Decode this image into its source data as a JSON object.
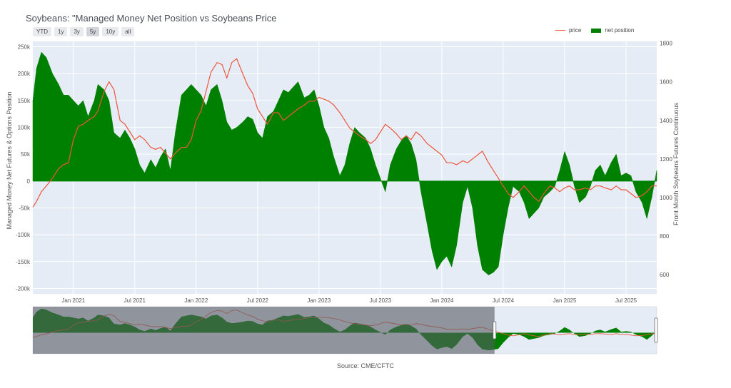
{
  "title": "Soybeans: \"Managed Money Net Position vs Soybeans Price",
  "range_buttons": [
    "YTD",
    "1y",
    "3y",
    "5y",
    "10y",
    "all"
  ],
  "active_range": "5y",
  "source": "Source: CME/CFTC",
  "colors": {
    "price": "#ef553b",
    "net_position": "#008000",
    "plot_bg": "#e5ecf6"
  },
  "chart_data": {
    "type": "area",
    "ylabel_left": "Managed Money Net Futures & Options Position",
    "ylabel_right": "Front Month Soybeans Futures Continuous",
    "left_ticks": [
      "250k",
      "200k",
      "150k",
      "100k",
      "50k",
      "0",
      "-50k",
      "-100k",
      "-150k",
      "-200k"
    ],
    "left_tick_values": [
      250000,
      200000,
      150000,
      100000,
      50000,
      0,
      -50000,
      -100000,
      -150000,
      -200000
    ],
    "right_ticks": [
      "1800",
      "1600",
      "1400",
      "1200",
      "1000",
      "800",
      "600"
    ],
    "right_tick_values": [
      1800,
      1600,
      1400,
      1200,
      1000,
      800,
      600
    ],
    "ylim_left": [
      -210000,
      260000
    ],
    "ylim_right": [
      500,
      1810
    ],
    "x_ticks": [
      "Jan 2021",
      "Jul 2021",
      "Jan 2022",
      "Jul 2022",
      "Jan 2023",
      "Jul 2023",
      "Jan 2024",
      "Jul 2024",
      "Jan 2025",
      "Jul 2025"
    ],
    "x_tick_years": [
      2021.0,
      2021.5,
      2022.0,
      2022.5,
      2023.0,
      2023.5,
      2024.0,
      2024.5,
      2025.0,
      2025.5
    ],
    "xlim": [
      2020.67,
      2025.75
    ],
    "legend_placement": "top-right",
    "series": [
      {
        "name": "net position",
        "x": [
          2020.67,
          2020.7,
          2020.74,
          2020.78,
          2020.83,
          2020.88,
          2020.92,
          2020.96,
          2021.0,
          2021.04,
          2021.08,
          2021.12,
          2021.17,
          2021.2,
          2021.25,
          2021.29,
          2021.33,
          2021.38,
          2021.42,
          2021.46,
          2021.5,
          2021.54,
          2021.58,
          2021.63,
          2021.67,
          2021.71,
          2021.75,
          2021.79,
          2021.83,
          2021.88,
          2021.92,
          2021.96,
          2022.0,
          2022.04,
          2022.08,
          2022.12,
          2022.17,
          2022.21,
          2022.25,
          2022.29,
          2022.33,
          2022.38,
          2022.42,
          2022.46,
          2022.5,
          2022.54,
          2022.58,
          2022.63,
          2022.67,
          2022.71,
          2022.75,
          2022.79,
          2022.83,
          2022.88,
          2022.92,
          2022.96,
          2023.0,
          2023.04,
          2023.08,
          2023.12,
          2023.17,
          2023.21,
          2023.25,
          2023.29,
          2023.33,
          2023.38,
          2023.42,
          2023.46,
          2023.5,
          2023.54,
          2023.58,
          2023.63,
          2023.67,
          2023.71,
          2023.75,
          2023.79,
          2023.83,
          2023.88,
          2023.92,
          2023.96,
          2024.0,
          2024.04,
          2024.08,
          2024.12,
          2024.17,
          2024.21,
          2024.25,
          2024.29,
          2024.33,
          2024.38,
          2024.42,
          2024.46,
          2024.5,
          2024.54,
          2024.58,
          2024.63,
          2024.67,
          2024.71,
          2024.75,
          2024.79,
          2024.83,
          2024.88,
          2024.92,
          2024.96,
          2025.0,
          2025.04,
          2025.08,
          2025.12,
          2025.17,
          2025.21,
          2025.25,
          2025.29,
          2025.33,
          2025.38,
          2025.42,
          2025.46,
          2025.5,
          2025.54,
          2025.58,
          2025.63,
          2025.67,
          2025.71,
          2025.75
        ],
        "values": [
          150000,
          210000,
          240000,
          230000,
          200000,
          180000,
          160000,
          160000,
          150000,
          140000,
          150000,
          120000,
          150000,
          180000,
          170000,
          150000,
          90000,
          80000,
          95000,
          80000,
          60000,
          30000,
          15000,
          40000,
          25000,
          45000,
          60000,
          20000,
          90000,
          160000,
          170000,
          180000,
          170000,
          160000,
          140000,
          170000,
          180000,
          150000,
          110000,
          95000,
          100000,
          110000,
          120000,
          115000,
          90000,
          80000,
          120000,
          130000,
          150000,
          170000,
          165000,
          175000,
          185000,
          155000,
          160000,
          170000,
          140000,
          100000,
          80000,
          45000,
          10000,
          30000,
          70000,
          100000,
          90000,
          80000,
          60000,
          30000,
          5000,
          -20000,
          30000,
          60000,
          75000,
          85000,
          70000,
          40000,
          -20000,
          -80000,
          -130000,
          -165000,
          -150000,
          -140000,
          -160000,
          -120000,
          -40000,
          -10000,
          -50000,
          -120000,
          -165000,
          -175000,
          -170000,
          -160000,
          -100000,
          -50000,
          -10000,
          -20000,
          -40000,
          -70000,
          -60000,
          -50000,
          -30000,
          -20000,
          -10000,
          20000,
          55000,
          30000,
          -10000,
          -40000,
          -30000,
          -10000,
          20000,
          30000,
          10000,
          35000,
          50000,
          10000,
          15000,
          10000,
          -20000,
          -40000,
          -70000,
          -30000,
          20000
        ]
      },
      {
        "name": "price",
        "x": [
          2020.67,
          2020.7,
          2020.74,
          2020.78,
          2020.83,
          2020.88,
          2020.92,
          2020.96,
          2021.0,
          2021.04,
          2021.08,
          2021.12,
          2021.17,
          2021.2,
          2021.25,
          2021.29,
          2021.33,
          2021.38,
          2021.42,
          2021.46,
          2021.5,
          2021.54,
          2021.58,
          2021.63,
          2021.67,
          2021.71,
          2021.75,
          2021.79,
          2021.83,
          2021.88,
          2021.92,
          2021.96,
          2022.0,
          2022.04,
          2022.08,
          2022.12,
          2022.17,
          2022.21,
          2022.25,
          2022.29,
          2022.33,
          2022.38,
          2022.42,
          2022.46,
          2022.5,
          2022.54,
          2022.58,
          2022.63,
          2022.67,
          2022.71,
          2022.75,
          2022.79,
          2022.83,
          2022.88,
          2022.92,
          2022.96,
          2023.0,
          2023.04,
          2023.08,
          2023.12,
          2023.17,
          2023.21,
          2023.25,
          2023.29,
          2023.33,
          2023.38,
          2023.42,
          2023.46,
          2023.5,
          2023.54,
          2023.58,
          2023.63,
          2023.67,
          2023.71,
          2023.75,
          2023.79,
          2023.83,
          2023.88,
          2023.92,
          2023.96,
          2024.0,
          2024.04,
          2024.08,
          2024.12,
          2024.17,
          2024.21,
          2024.25,
          2024.29,
          2024.33,
          2024.38,
          2024.42,
          2024.46,
          2024.5,
          2024.54,
          2024.58,
          2024.63,
          2024.67,
          2024.71,
          2024.75,
          2024.79,
          2024.83,
          2024.88,
          2024.92,
          2024.96,
          2025.0,
          2025.04,
          2025.08,
          2025.12,
          2025.17,
          2025.21,
          2025.25,
          2025.29,
          2025.33,
          2025.38,
          2025.42,
          2025.46,
          2025.5,
          2025.54,
          2025.58,
          2025.63,
          2025.67,
          2025.71,
          2025.75
        ],
        "values": [
          950,
          980,
          1030,
          1060,
          1100,
          1150,
          1170,
          1180,
          1300,
          1370,
          1380,
          1400,
          1420,
          1450,
          1550,
          1600,
          1560,
          1400,
          1380,
          1340,
          1300,
          1320,
          1300,
          1260,
          1250,
          1260,
          1230,
          1200,
          1230,
          1260,
          1260,
          1300,
          1400,
          1450,
          1550,
          1650,
          1700,
          1690,
          1620,
          1700,
          1720,
          1640,
          1580,
          1540,
          1460,
          1420,
          1380,
          1440,
          1440,
          1400,
          1420,
          1440,
          1460,
          1480,
          1500,
          1500,
          1520,
          1510,
          1500,
          1480,
          1440,
          1400,
          1360,
          1340,
          1320,
          1300,
          1280,
          1300,
          1340,
          1380,
          1360,
          1330,
          1300,
          1320,
          1300,
          1340,
          1320,
          1280,
          1260,
          1240,
          1220,
          1180,
          1180,
          1170,
          1190,
          1180,
          1200,
          1220,
          1240,
          1180,
          1140,
          1100,
          1060,
          1020,
          1000,
          1030,
          1060,
          1030,
          1000,
          980,
          1020,
          1060,
          1050,
          1030,
          1050,
          1060,
          1040,
          1040,
          1050,
          1040,
          1060,
          1060,
          1050,
          1040,
          1060,
          1040,
          1040,
          1020,
          1000,
          1010,
          1030,
          1060,
          1060
        ]
      }
    ]
  }
}
